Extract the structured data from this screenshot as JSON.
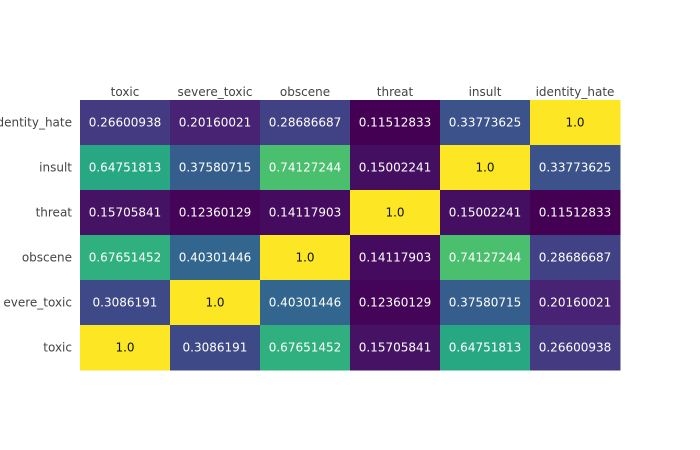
{
  "chart_data": {
    "type": "heatmap",
    "title": "",
    "xlabel": "",
    "ylabel": "",
    "colorscale": "viridis",
    "zmin": 0.1151,
    "zmax": 1.0,
    "x": [
      "toxic",
      "severe_toxic",
      "obscene",
      "threat",
      "insult",
      "identity_hate"
    ],
    "y": [
      "identity_hate",
      "insult",
      "threat",
      "obscene",
      "severe_toxic",
      "toxic"
    ],
    "y_tick_labels": [
      "dentity_hate",
      "insult",
      "threat",
      "obscene",
      "evere_toxic",
      "toxic"
    ],
    "z": [
      [
        0.26600938,
        0.20160021,
        0.28686687,
        0.11512833,
        0.33773625,
        1.0
      ],
      [
        0.64751813,
        0.37580715,
        0.74127244,
        0.15002241,
        1.0,
        0.33773625
      ],
      [
        0.15705841,
        0.12360129,
        0.14117903,
        1.0,
        0.15002241,
        0.11512833
      ],
      [
        0.67651452,
        0.40301446,
        1.0,
        0.14117903,
        0.74127244,
        0.28686687
      ],
      [
        0.3086191,
        1.0,
        0.40301446,
        0.12360129,
        0.37580715,
        0.20160021
      ],
      [
        1.0,
        0.3086191,
        0.67651452,
        0.15705841,
        0.64751813,
        0.26600938
      ]
    ],
    "text": [
      [
        "0.26600938",
        "0.20160021",
        "0.28686687",
        "0.11512833",
        "0.33773625",
        "1.0"
      ],
      [
        "0.64751813",
        "0.37580715",
        "0.74127244",
        "0.15002241",
        "1.0",
        "0.33773625"
      ],
      [
        "0.15705841",
        "0.12360129",
        "0.14117903",
        "1.0",
        "0.15002241",
        "0.11512833"
      ],
      [
        "0.67651452",
        "0.40301446",
        "1.0",
        "0.14117903",
        "0.74127244",
        "0.28686687"
      ],
      [
        "0.3086191",
        "1.0",
        "0.40301446",
        "0.12360129",
        "0.37580715",
        "0.20160021"
      ],
      [
        "1.0",
        "0.3086191",
        "0.67651452",
        "0.15705841",
        "0.64751813",
        "0.26600938"
      ]
    ],
    "x_axis_position": "top",
    "grid": false,
    "showscale": false
  }
}
